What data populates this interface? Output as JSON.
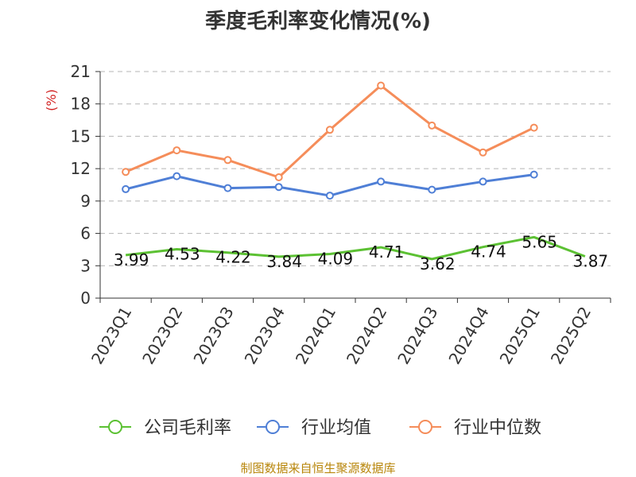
{
  "title": "季度毛利率变化情况(%)",
  "source": "制图数据来自恒生聚源数据库",
  "colors": {
    "company": "#5cc133",
    "industry_avg": "#4f7fd6",
    "industry_median": "#f58d5a",
    "unit_label": "#d22222",
    "source": "#b8860b"
  },
  "chart_data": {
    "type": "line",
    "title": "季度毛利率变化情况(%)",
    "ylabel": "(%)",
    "ylim": [
      0,
      21
    ],
    "yticks": [
      "0",
      "3",
      "6",
      "9",
      "12",
      "15",
      "18",
      "21"
    ],
    "ytick_values": [
      0,
      3,
      6,
      9,
      12,
      15,
      18,
      21
    ],
    "grid": true,
    "legend_position": "bottom",
    "categories": [
      "2023Q1",
      "2023Q2",
      "2023Q3",
      "2023Q4",
      "2024Q1",
      "2024Q2",
      "2024Q3",
      "2024Q4",
      "2025Q1",
      "2025Q2"
    ],
    "series": [
      {
        "name": "公司毛利率",
        "values": [
          3.99,
          4.53,
          4.22,
          3.84,
          4.09,
          4.71,
          3.62,
          4.74,
          5.65,
          3.87
        ],
        "labels": [
          "3.99",
          "4.53",
          "4.22",
          "3.84",
          "4.09",
          "4.71",
          "3.62",
          "4.74",
          "5.65",
          "3.87"
        ]
      },
      {
        "name": "行业均值",
        "values": [
          10.1,
          11.3,
          10.2,
          10.3,
          9.5,
          10.8,
          10.05,
          10.8,
          11.45,
          null
        ]
      },
      {
        "name": "行业中位数",
        "values": [
          11.7,
          13.7,
          12.8,
          11.2,
          15.6,
          19.7,
          16.0,
          13.5,
          15.8,
          null
        ]
      }
    ]
  }
}
